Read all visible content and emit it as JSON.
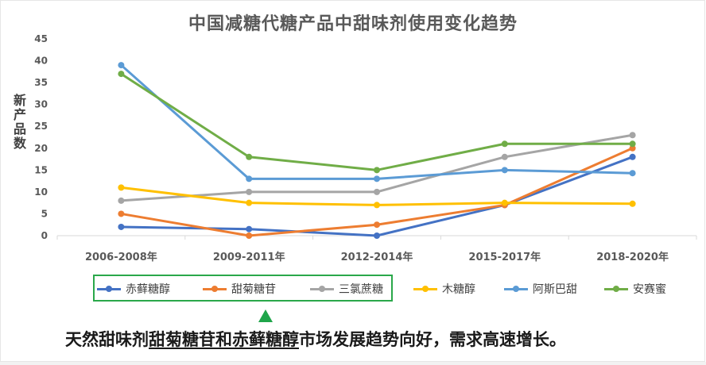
{
  "chart_data": {
    "type": "line",
    "title": "中国减糖代糖产品中甜味剂使用变化趋势",
    "ylabel": "新产品数",
    "xlabel": "",
    "categories": [
      "2006-2008年",
      "2009-2011年",
      "2012-2014年",
      "2015-2017年",
      "2018-2020年"
    ],
    "ylim": [
      0,
      45
    ],
    "yticks": [
      0,
      5,
      10,
      15,
      20,
      25,
      30,
      35,
      40,
      45
    ],
    "grid": false,
    "legend_position": "bottom",
    "series": [
      {
        "name": "赤藓糖醇",
        "color": "#4472c4",
        "values": [
          2,
          1.5,
          0,
          7,
          18
        ]
      },
      {
        "name": "甜菊糖苷",
        "color": "#ed7d31",
        "values": [
          5,
          0,
          2.5,
          7,
          20
        ]
      },
      {
        "name": "三氯蔗糖",
        "color": "#a5a5a5",
        "values": [
          8,
          10,
          10,
          18,
          23
        ]
      },
      {
        "name": "木糖醇",
        "color": "#ffc000",
        "values": [
          11,
          7.5,
          7,
          7.5,
          7.3
        ]
      },
      {
        "name": "阿斯巴甜",
        "color": "#5b9bd5",
        "values": [
          39,
          13,
          13,
          15,
          14.3
        ]
      },
      {
        "name": "安赛蜜",
        "color": "#70ad47",
        "values": [
          37,
          18,
          15,
          21,
          21
        ]
      }
    ]
  },
  "note": {
    "part1": "天然甜味剂",
    "part2": "甜菊糖苷和赤藓糖醇",
    "part3": "市场发展趋势向好，需求高速增长。"
  }
}
